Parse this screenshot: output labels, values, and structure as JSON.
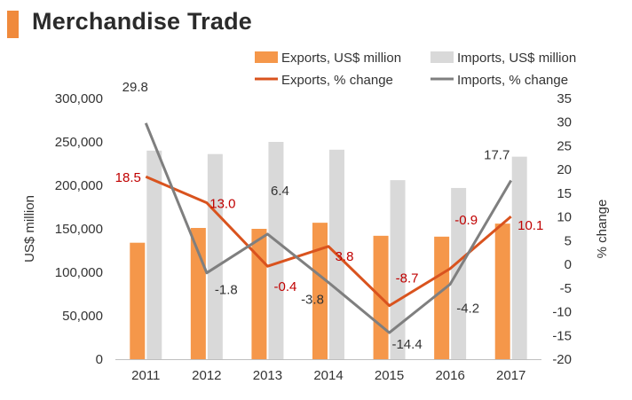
{
  "header": {
    "title": "Merchandise Trade"
  },
  "colors": {
    "accent": "#f08a3c",
    "exports_bar": "#f5974a",
    "imports_bar": "#d9d9d9",
    "exports_line": "#d9531e",
    "imports_line": "#7f7f7f",
    "exports_label": "#c00000",
    "imports_label": "#333333"
  },
  "chart_data": {
    "type": "bar",
    "categories": [
      "2011",
      "2012",
      "2013",
      "2014",
      "2015",
      "2016",
      "2017"
    ],
    "series": [
      {
        "name": "Exports, US$ million",
        "type": "bar",
        "axis": "left",
        "values": [
          134000,
          151000,
          150000,
          157000,
          142000,
          141000,
          156000
        ]
      },
      {
        "name": "Imports, US$ million",
        "type": "bar",
        "axis": "left",
        "values": [
          240000,
          236000,
          250000,
          241000,
          206000,
          197000,
          233000
        ]
      },
      {
        "name": "Exports, % change",
        "type": "line",
        "axis": "right",
        "values": [
          18.5,
          13.0,
          -0.4,
          3.8,
          -8.7,
          -0.9,
          10.1
        ],
        "labels": [
          "18.5",
          "13.0",
          "-0.4",
          "3.8",
          "-8.7",
          "-0.9",
          "10.1"
        ]
      },
      {
        "name": "Imports, % change",
        "type": "line",
        "axis": "right",
        "values": [
          29.8,
          -1.8,
          6.4,
          -3.8,
          -14.4,
          -4.2,
          17.7
        ],
        "labels": [
          "29.8",
          "-1.8",
          "6.4",
          "-3.8",
          "-14.4",
          "-4.2",
          "17.7"
        ]
      }
    ],
    "ylabel": "US$ million",
    "y2label": "% change",
    "ylim": [
      0,
      300000
    ],
    "y2lim": [
      -20,
      35
    ],
    "yticks": [
      "0",
      "50,000",
      "100,000",
      "150,000",
      "200,000",
      "250,000",
      "300,000"
    ],
    "y2ticks": [
      "-20",
      "-15",
      "-10",
      "-5",
      "0",
      "5",
      "10",
      "15",
      "20",
      "25",
      "30",
      "35"
    ],
    "grid": false,
    "legend": "top"
  }
}
